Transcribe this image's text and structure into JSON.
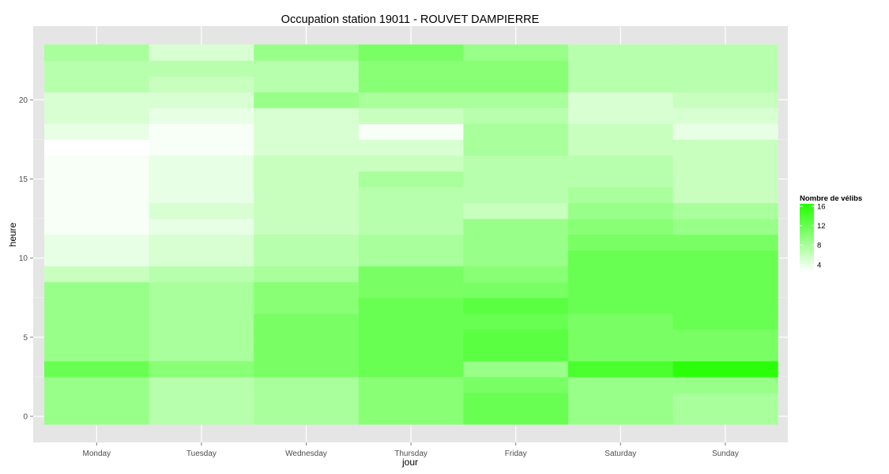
{
  "chart_data": {
    "type": "heatmap",
    "title": "Occupation station 19011 - ROUVET DAMPIERRE",
    "xlabel": "jour",
    "ylabel": "heure",
    "x_categories": [
      "Monday",
      "Tuesday",
      "Wednesday",
      "Thursday",
      "Friday",
      "Saturday",
      "Sunday"
    ],
    "y_range": [
      0,
      23
    ],
    "y_ticks": [
      0,
      5,
      10,
      15,
      20
    ],
    "y_tick_labels": [
      "0",
      "5",
      "10",
      "15",
      "20"
    ],
    "grid": true,
    "legend": {
      "title": "Nombre de vélibs",
      "position": "right",
      "breaks": [
        4,
        8,
        12,
        16
      ],
      "labels": [
        "4",
        "8",
        "12",
        "16"
      ],
      "min": 2.5,
      "max": 16.5,
      "low_color": "#ffffff",
      "high_color": "#22ff00"
    },
    "series": [
      {
        "name": "Monday",
        "values": [
          9,
          9,
          9,
          12,
          9,
          9,
          9,
          9,
          9,
          6,
          4,
          4,
          3,
          3,
          3,
          3,
          3,
          2,
          4,
          5,
          5,
          7,
          7,
          8
        ]
      },
      {
        "name": "Tuesday",
        "values": [
          7,
          7,
          7,
          10,
          8,
          8,
          8,
          8,
          8,
          7,
          5,
          5,
          4,
          5,
          4,
          4,
          4,
          3,
          3,
          4,
          5,
          6,
          7,
          5
        ]
      },
      {
        "name": "Wednesday",
        "values": [
          8,
          8,
          8,
          11,
          11,
          11,
          11,
          10,
          10,
          8,
          7,
          7,
          6,
          6,
          6,
          6,
          6,
          5,
          5,
          5,
          9,
          7,
          7,
          9
        ]
      },
      {
        "name": "Thursday",
        "values": [
          10,
          10,
          10,
          12,
          12,
          12,
          12,
          12,
          11,
          11,
          8,
          8,
          7,
          7,
          7,
          8,
          6,
          5,
          3,
          6,
          8,
          10,
          10,
          11
        ]
      },
      {
        "name": "Friday",
        "values": [
          12,
          12,
          11,
          9,
          13,
          13,
          12,
          13,
          11,
          10,
          9,
          9,
          9,
          6,
          7,
          7,
          7,
          8,
          8,
          7,
          8,
          10,
          10,
          9
        ]
      },
      {
        "name": "Saturday",
        "values": [
          9,
          9,
          9,
          14,
          11,
          11,
          11,
          12,
          12,
          12,
          12,
          11,
          10,
          9,
          8,
          7,
          7,
          6,
          6,
          5,
          5,
          7,
          7,
          7
        ]
      },
      {
        "name": "Sunday",
        "values": [
          8,
          8,
          9,
          16,
          11,
          11,
          12,
          12,
          12,
          12,
          12,
          11,
          9,
          8,
          6,
          6,
          6,
          6,
          4,
          5,
          6,
          7,
          7,
          7
        ]
      }
    ]
  }
}
